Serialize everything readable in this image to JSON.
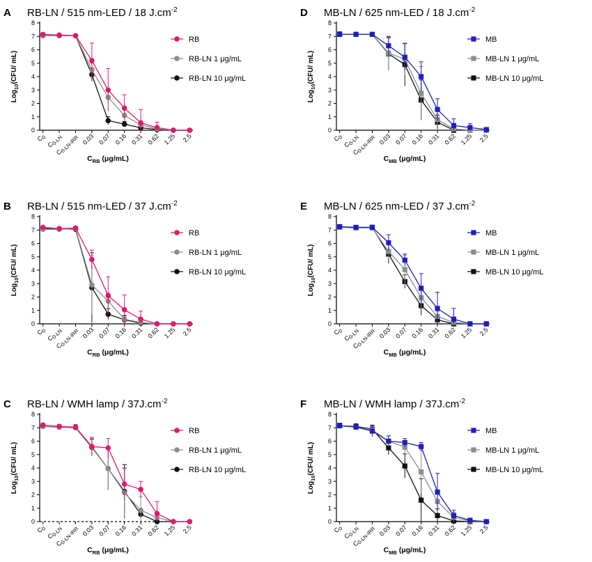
{
  "figure": {
    "x_categories": [
      "C0",
      "C0-LN",
      "C0-LN-IRR",
      "0.03",
      "0.07",
      "0.16",
      "0.31",
      "0.62",
      "1.25",
      "2.5"
    ],
    "x_category_labels": [
      {
        "main": "C",
        "sub": "0"
      },
      {
        "main": "C",
        "sub": "0-LN"
      },
      {
        "main": "C",
        "sub": "0-LN-IRR"
      },
      {
        "main": "0.03",
        "sub": ""
      },
      {
        "main": "0.07",
        "sub": ""
      },
      {
        "main": "0.16",
        "sub": ""
      },
      {
        "main": "0.31",
        "sub": ""
      },
      {
        "main": "0.62",
        "sub": ""
      },
      {
        "main": "1.25",
        "sub": ""
      },
      {
        "main": "2.5",
        "sub": ""
      }
    ],
    "y_ticks": [
      "0",
      "1",
      "2",
      "3",
      "4",
      "5",
      "6",
      "7",
      "8"
    ],
    "y_label": {
      "pre": "Log",
      "sub": "10",
      "post": "(CFU/ mL)"
    },
    "colors": {
      "rb": "#e0196c",
      "mb": "#1f1fbf",
      "ln1": "#8c8c8c",
      "ln10": "#111111",
      "axis": "#000000"
    }
  },
  "chart_data": [
    {
      "type": "line",
      "letter": "A",
      "title": {
        "pre": "RB-LN / 515 nm-LED / 18 J.cm",
        "sup": "-2"
      },
      "xlabel": {
        "main": "C",
        "sub": "RB",
        "post": " (μg/mL)"
      },
      "ylim": [
        0,
        8
      ],
      "dashed_baseline": false,
      "categories": [
        "C0",
        "C0-LN",
        "C0-LN-IRR",
        "0.03",
        "0.07",
        "0.16",
        "0.31",
        "0.62",
        "1.25",
        "2.5"
      ],
      "series": [
        {
          "name": "RB",
          "color_key": "rb",
          "marker": "circle",
          "values": [
            7.15,
            7.1,
            7.05,
            5.2,
            3.0,
            1.65,
            0.55,
            0.2,
            0.0,
            0.0
          ],
          "errors": [
            0.1,
            0.1,
            0.1,
            1.3,
            1.6,
            1.0,
            1.0,
            0.4,
            0.0,
            0.0
          ]
        },
        {
          "name": "RB-LN 1 μg/mL",
          "color_key": "ln1",
          "marker": "circle",
          "values": [
            7.05,
            7.05,
            7.05,
            4.5,
            2.45,
            1.1,
            0.4,
            0.1,
            0.0,
            0.0
          ],
          "errors": [
            0.1,
            0.1,
            0.1,
            0.5,
            0.5,
            0.4,
            0.3,
            0.15,
            0.0,
            0.0
          ]
        },
        {
          "name": "RB-LN 10 μg/mL",
          "color_key": "ln10",
          "marker": "circle",
          "values": [
            7.05,
            7.05,
            7.05,
            4.15,
            0.72,
            0.45,
            0.18,
            0.05,
            0.0,
            0.0
          ],
          "errors": [
            0.1,
            0.1,
            0.1,
            0.5,
            0.3,
            0.2,
            0.1,
            0.05,
            0.0,
            0.0
          ]
        }
      ]
    },
    {
      "type": "line",
      "letter": "B",
      "title": {
        "pre": "RB-LN / 515 nm-LED / 37 J.cm",
        "sup": "-2"
      },
      "xlabel": {
        "main": "C",
        "sub": "RB",
        "post": " (μg/mL)"
      },
      "ylim": [
        0,
        8
      ],
      "dashed_baseline": false,
      "categories": [
        "C0",
        "C0-LN",
        "C0-LN-IRR",
        "0.03",
        "0.07",
        "0.16",
        "0.31",
        "0.62",
        "1.25",
        "2.5"
      ],
      "series": [
        {
          "name": "RB",
          "color_key": "rb",
          "marker": "circle",
          "values": [
            7.2,
            7.1,
            7.15,
            4.8,
            2.1,
            1.05,
            0.35,
            0.0,
            0.0,
            0.0
          ],
          "errors": [
            0.1,
            0.1,
            0.1,
            0.7,
            1.4,
            1.1,
            0.6,
            0.0,
            0.0,
            0.0
          ]
        },
        {
          "name": "RB-LN 1 μg/mL",
          "color_key": "ln1",
          "marker": "circle",
          "values": [
            7.05,
            7.05,
            7.1,
            2.9,
            1.7,
            0.35,
            0.1,
            0.0,
            0.0,
            0.0
          ],
          "errors": [
            0.1,
            0.1,
            0.1,
            2.2,
            0.6,
            0.3,
            0.1,
            0.0,
            0.0,
            0.0
          ]
        },
        {
          "name": "RB-LN 10 μg/mL",
          "color_key": "ln10",
          "marker": "circle",
          "values": [
            7.1,
            7.1,
            7.05,
            2.7,
            0.72,
            0.3,
            0.05,
            0.0,
            0.0,
            0.0
          ],
          "errors": [
            0.1,
            0.1,
            0.1,
            2.6,
            0.4,
            0.3,
            0.05,
            0.0,
            0.0,
            0.0
          ]
        }
      ]
    },
    {
      "type": "line",
      "letter": "C",
      "title": {
        "pre": "RB-LN / WMH lamp / 37J.cm",
        "sup": "-2"
      },
      "xlabel": {
        "main": "C",
        "sub": "RB",
        "post": " (μg/mL)"
      },
      "ylim": [
        0,
        8
      ],
      "dashed_baseline": true,
      "categories": [
        "C0",
        "C0-LN",
        "C0-LN-IRR",
        "0.03",
        "0.07",
        "0.16",
        "0.31",
        "0.62",
        "1.25",
        "2.5"
      ],
      "series": [
        {
          "name": "RB",
          "color_key": "rb",
          "marker": "circle",
          "values": [
            7.2,
            7.1,
            7.05,
            5.6,
            5.5,
            2.8,
            2.4,
            0.6,
            0.0,
            0.0
          ],
          "errors": [
            0.15,
            0.15,
            0.2,
            0.7,
            0.7,
            1.2,
            0.6,
            0.9,
            0.0,
            0.0
          ]
        },
        {
          "name": "RB-LN 1 μg/mL",
          "color_key": "ln1",
          "marker": "circle",
          "values": [
            7.1,
            7.05,
            7.0,
            5.6,
            3.95,
            2.15,
            0.85,
            0.3,
            0.0,
            0.0
          ],
          "errors": [
            0.15,
            0.15,
            0.2,
            0.6,
            1.6,
            1.8,
            1.0,
            0.4,
            0.0,
            0.0
          ]
        },
        {
          "name": "RB-LN 10 μg/mL",
          "color_key": "ln10",
          "marker": "circle",
          "values": [
            7.1,
            7.05,
            7.0,
            5.55,
            3.95,
            2.25,
            0.55,
            0.0,
            0.0,
            0.0
          ],
          "errors": [
            0.15,
            0.15,
            0.2,
            0.6,
            1.6,
            2.0,
            0.3,
            0.0,
            0.0,
            0.0
          ]
        }
      ]
    },
    {
      "type": "line",
      "letter": "D",
      "title": {
        "pre": "MB-LN / 625 nm-LED / 18 J.cm",
        "sup": "-2"
      },
      "xlabel": {
        "main": "C",
        "sub": "MB",
        "post": " (μg/mL)"
      },
      "ylim": [
        0,
        8
      ],
      "dashed_baseline": false,
      "categories": [
        "C0",
        "C0-LN",
        "C0-LN-IRR",
        "0.03",
        "0.07",
        "0.16",
        "0.31",
        "0.62",
        "1.25",
        "2.5"
      ],
      "series": [
        {
          "name": "MB",
          "color_key": "mb",
          "marker": "square",
          "values": [
            7.15,
            7.15,
            7.15,
            6.3,
            5.45,
            4.0,
            1.55,
            0.35,
            0.2,
            0.05
          ],
          "errors": [
            0.2,
            0.15,
            0.1,
            0.7,
            1.0,
            1.1,
            0.8,
            0.5,
            0.3,
            0.05
          ]
        },
        {
          "name": "MB-LN 1 μg/mL",
          "color_key": "ln1",
          "marker": "square",
          "values": [
            7.15,
            7.15,
            7.15,
            5.75,
            5.3,
            2.75,
            0.8,
            0.1,
            0.0,
            0.0
          ],
          "errors": [
            0.2,
            0.15,
            0.1,
            1.2,
            1.2,
            2.0,
            0.4,
            0.1,
            0.0,
            0.0
          ]
        },
        {
          "name": "MB-LN 10 μg/mL",
          "color_key": "ln10",
          "marker": "square",
          "values": [
            7.15,
            7.15,
            7.15,
            5.7,
            4.9,
            2.25,
            0.6,
            0.0,
            0.0,
            0.0
          ],
          "errors": [
            0.2,
            0.15,
            0.1,
            1.2,
            1.6,
            1.5,
            0.5,
            0.0,
            0.0,
            0.0
          ]
        }
      ]
    },
    {
      "type": "line",
      "letter": "E",
      "title": {
        "pre": "MB-LN / 625 nm-LED / 37 J.cm",
        "sup": "-2"
      },
      "xlabel": {
        "main": "C",
        "sub": "MB",
        "post": " (μg/mL)"
      },
      "ylim": [
        0,
        8
      ],
      "dashed_baseline": false,
      "categories": [
        "C0",
        "C0-LN",
        "C0-LN-IRR",
        "0.03",
        "0.07",
        "0.16",
        "0.31",
        "0.62",
        "1.25",
        "2.5"
      ],
      "series": [
        {
          "name": "MB",
          "color_key": "mb",
          "marker": "square",
          "values": [
            7.25,
            7.2,
            7.2,
            6.05,
            4.75,
            2.65,
            1.15,
            0.35,
            0.0,
            0.0
          ],
          "errors": [
            0.15,
            0.15,
            0.1,
            0.6,
            0.4,
            1.1,
            1.2,
            0.8,
            0.0,
            0.0
          ]
        },
        {
          "name": "MB-LN 1 μg/mL",
          "color_key": "ln1",
          "marker": "square",
          "values": [
            7.2,
            7.15,
            7.15,
            5.4,
            4.05,
            1.95,
            0.55,
            0.1,
            0.0,
            0.0
          ],
          "errors": [
            0.15,
            0.15,
            0.1,
            0.5,
            1.2,
            0.8,
            0.4,
            0.2,
            0.0,
            0.0
          ]
        },
        {
          "name": "MB-LN 10 μg/mL",
          "color_key": "ln10",
          "marker": "square",
          "values": [
            7.2,
            7.15,
            7.2,
            5.2,
            3.15,
            1.35,
            0.3,
            0.0,
            0.0,
            0.0
          ],
          "errors": [
            0.15,
            0.15,
            0.1,
            0.7,
            0.5,
            0.7,
            0.3,
            0.0,
            0.0,
            0.0
          ]
        }
      ]
    },
    {
      "type": "line",
      "letter": "F",
      "title": {
        "pre": "MB-LN / WMH lamp / 37J.cm",
        "sup": "-2"
      },
      "xlabel": {
        "main": "C",
        "sub": "MB",
        "post": " (μg/mL)"
      },
      "ylim": [
        0,
        8
      ],
      "dashed_baseline": false,
      "categories": [
        "C0",
        "C0-LN",
        "C0-LN-IRR",
        "0.03",
        "0.07",
        "0.16",
        "0.31",
        "0.62",
        "1.25",
        "2.5"
      ],
      "series": [
        {
          "name": "MB",
          "color_key": "mb",
          "marker": "square",
          "values": [
            7.15,
            7.05,
            6.75,
            6.0,
            5.9,
            5.6,
            2.2,
            0.45,
            0.1,
            0.0
          ],
          "errors": [
            0.2,
            0.2,
            0.4,
            0.4,
            0.3,
            0.3,
            1.4,
            0.4,
            0.15,
            0.0
          ]
        },
        {
          "name": "MB-LN 1 μg/mL",
          "color_key": "ln1",
          "marker": "square",
          "values": [
            7.15,
            7.05,
            6.85,
            6.0,
            5.55,
            3.7,
            1.5,
            0.3,
            0.05,
            0.0
          ],
          "errors": [
            0.2,
            0.2,
            0.3,
            0.4,
            0.5,
            1.6,
            0.8,
            0.4,
            0.1,
            0.0
          ]
        },
        {
          "name": "MB-LN 10 μg/mL",
          "color_key": "ln10",
          "marker": "square",
          "values": [
            7.15,
            7.1,
            6.9,
            5.5,
            4.15,
            1.6,
            0.45,
            0.05,
            0.0,
            0.0
          ],
          "errors": [
            0.2,
            0.2,
            0.3,
            0.5,
            0.9,
            1.6,
            0.5,
            0.1,
            0.0,
            0.0
          ]
        }
      ]
    }
  ]
}
